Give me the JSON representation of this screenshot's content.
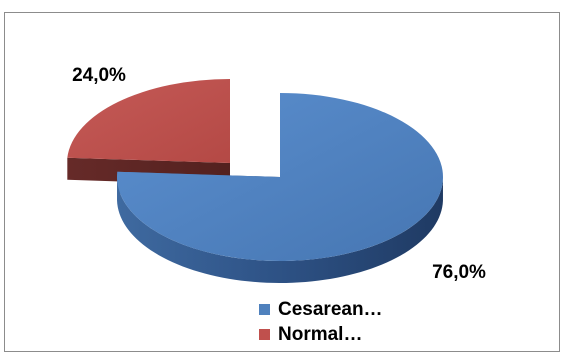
{
  "chart_data": {
    "type": "pie",
    "style": "3d-exploded",
    "categories": [
      "Cesarean…",
      "Normal…"
    ],
    "values": [
      76.0,
      24.0
    ],
    "data_labels": [
      "76,0%",
      "24,0%"
    ],
    "colors": [
      "#4f81bd",
      "#c0504d"
    ],
    "legend": {
      "position": "bottom-right",
      "entries": [
        "Cesarean…",
        "Normal…"
      ]
    }
  }
}
